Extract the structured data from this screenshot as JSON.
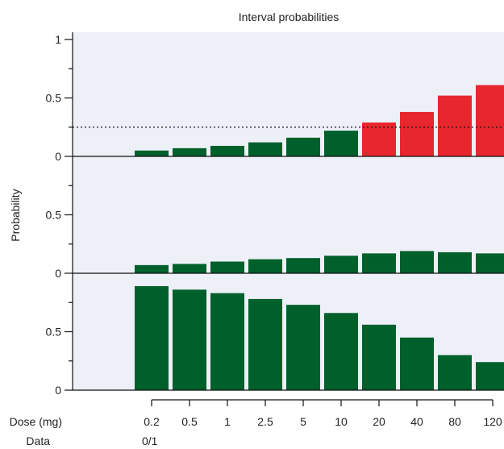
{
  "chart_data": {
    "type": "bar",
    "title": "Interval probabilities",
    "ylabel": "Probability",
    "xlabel": "Dose (mg)",
    "categories": [
      "0.2",
      "0.5",
      "1",
      "2.5",
      "5",
      "10",
      "20",
      "40",
      "80",
      "120"
    ],
    "data_row": {
      "label": "Data",
      "values": [
        "0/1",
        "",
        "",
        "",
        "",
        "",
        "",
        "",
        "",
        ""
      ]
    },
    "threshold": {
      "panel": 0,
      "value": 0.25,
      "style": "dotted"
    },
    "panels": [
      {
        "ylim": [
          0,
          1
        ],
        "yticks": [
          0,
          0.5,
          1
        ],
        "ytick_labels": [
          "0",
          "0.5",
          "1"
        ],
        "values": [
          0.05,
          0.07,
          0.09,
          0.12,
          0.16,
          0.22,
          0.29,
          0.38,
          0.52,
          0.61
        ],
        "colors": [
          "#00602b",
          "#00602b",
          "#00602b",
          "#00602b",
          "#00602b",
          "#00602b",
          "#e8262d",
          "#e8262d",
          "#e8262d",
          "#e8262d"
        ]
      },
      {
        "ylim": [
          0,
          1
        ],
        "yticks": [
          0,
          0.5
        ],
        "ytick_labels": [
          "0",
          "0.5"
        ],
        "values": [
          0.07,
          0.08,
          0.1,
          0.12,
          0.13,
          0.15,
          0.17,
          0.19,
          0.18,
          0.17
        ],
        "colors": [
          "#00602b",
          "#00602b",
          "#00602b",
          "#00602b",
          "#00602b",
          "#00602b",
          "#00602b",
          "#00602b",
          "#00602b",
          "#00602b"
        ]
      },
      {
        "ylim": [
          0,
          1
        ],
        "yticks": [
          0,
          0.5
        ],
        "ytick_labels": [
          "0",
          "0.5"
        ],
        "values": [
          0.89,
          0.86,
          0.83,
          0.78,
          0.73,
          0.66,
          0.56,
          0.45,
          0.3,
          0.24
        ],
        "colors": [
          "#00602b",
          "#00602b",
          "#00602b",
          "#00602b",
          "#00602b",
          "#00602b",
          "#00602b",
          "#00602b",
          "#00602b",
          "#00602b"
        ]
      }
    ],
    "colors": {
      "background": "#eef0f8",
      "green": "#00602b",
      "red": "#e8262d"
    }
  }
}
